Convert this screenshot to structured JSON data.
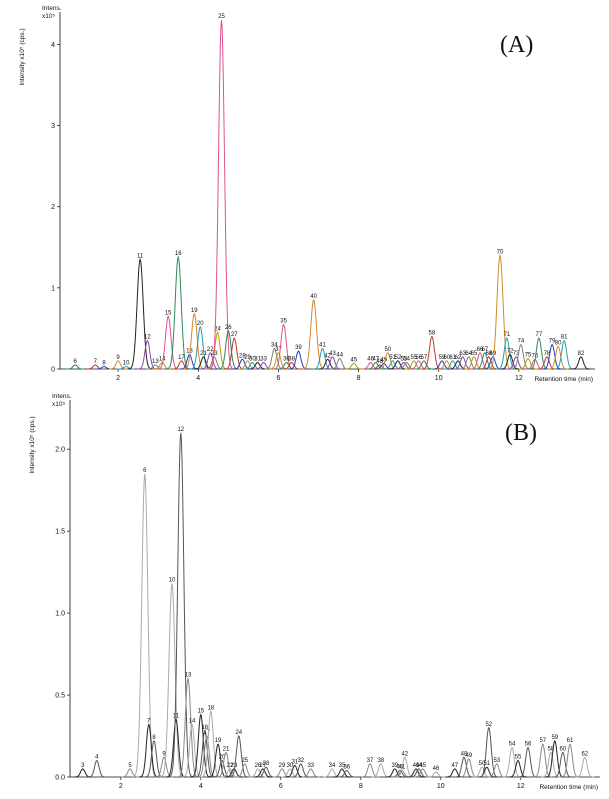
{
  "chart_data": [
    {
      "type": "chromatogram",
      "panel_label": "(A)",
      "y_unit_label": "Intens.",
      "y_scale_label": "x10⁵",
      "ylabel": "Intensity x10⁵ (cps.)",
      "xlabel": "Retention time (min)",
      "xlim": [
        0.55,
        13.9
      ],
      "ylim": [
        0,
        4.4
      ],
      "xticks": [
        2,
        4,
        6,
        8,
        10,
        12
      ],
      "yticks": [
        0,
        1,
        2,
        3,
        4
      ],
      "colors": [
        "#2e8b57",
        "#c0392b",
        "#1f3fbf",
        "#d4882a",
        "#20a0b0",
        "#222222",
        "#8e44ad",
        "#7f7f7f",
        "#b5a000",
        "#e05090"
      ],
      "labels": [
        "6",
        "7",
        "8",
        "9",
        "10",
        "11",
        "12",
        "13",
        "14",
        "15",
        "16",
        "17",
        "18",
        "19",
        "20",
        "21",
        "22",
        "23",
        "24",
        "25",
        "26",
        "27",
        "28",
        "29",
        "30",
        "31",
        "33",
        "34",
        "37",
        "35",
        "36",
        "38",
        "39",
        "40",
        "41",
        "42",
        "43",
        "44",
        "45",
        "46",
        "47",
        "48",
        "49",
        "50",
        "51",
        "52",
        "53",
        "54",
        "55",
        "56",
        "57",
        "58",
        "59",
        "60",
        "61",
        "62",
        "63",
        "64",
        "65",
        "66",
        "67",
        "68",
        "69",
        "70",
        "71",
        "72",
        "73",
        "74",
        "75",
        "76",
        "77",
        "78",
        "79",
        "80",
        "81",
        "82"
      ],
      "x": [
        0.93,
        1.43,
        1.65,
        2.0,
        2.2,
        2.55,
        2.73,
        2.93,
        3.1,
        3.25,
        3.5,
        3.58,
        3.78,
        3.9,
        4.05,
        4.13,
        4.3,
        4.4,
        4.48,
        4.58,
        4.75,
        4.9,
        5.1,
        5.23,
        5.35,
        5.48,
        5.63,
        5.9,
        6.0,
        6.13,
        6.2,
        6.33,
        6.5,
        6.88,
        7.1,
        7.23,
        7.35,
        7.53,
        7.88,
        8.3,
        8.43,
        8.53,
        8.63,
        8.73,
        8.85,
        8.98,
        9.13,
        9.2,
        9.38,
        9.5,
        9.63,
        9.83,
        10.08,
        10.2,
        10.35,
        10.48,
        10.6,
        10.75,
        10.88,
        11.03,
        11.15,
        11.25,
        11.35,
        11.53,
        11.7,
        11.78,
        11.93,
        12.05,
        12.23,
        12.4,
        12.5,
        12.7,
        12.83,
        12.98,
        13.13,
        13.55
      ],
      "values": [
        0.05,
        0.05,
        0.03,
        0.1,
        0.03,
        1.35,
        0.35,
        0.05,
        0.08,
        0.65,
        1.38,
        0.1,
        0.18,
        0.68,
        0.52,
        0.15,
        0.2,
        0.15,
        0.45,
        4.3,
        0.47,
        0.38,
        0.12,
        0.1,
        0.08,
        0.08,
        0.08,
        0.25,
        0.2,
        0.55,
        0.08,
        0.08,
        0.22,
        0.85,
        0.25,
        0.12,
        0.15,
        0.13,
        0.07,
        0.08,
        0.08,
        0.05,
        0.07,
        0.2,
        0.1,
        0.1,
        0.08,
        0.08,
        0.1,
        0.1,
        0.1,
        0.4,
        0.1,
        0.1,
        0.1,
        0.1,
        0.15,
        0.15,
        0.15,
        0.2,
        0.2,
        0.15,
        0.15,
        1.4,
        0.38,
        0.18,
        0.15,
        0.3,
        0.13,
        0.12,
        0.38,
        0.15,
        0.3,
        0.28,
        0.35,
        0.15
      ]
    },
    {
      "type": "chromatogram",
      "panel_label": "(B)",
      "y_unit_label": "Intens.",
      "y_scale_label": "x10⁵",
      "ylabel": "Intensity x10⁵ (cps.)",
      "xlabel": "Retention time (min)",
      "xlim": [
        0.73,
        13.98
      ],
      "ylim": [
        0,
        2.3
      ],
      "xticks": [
        2,
        4,
        6,
        8,
        10,
        12
      ],
      "yticks": [
        {
          "value": 0,
          "label": "0.0"
        },
        0.5,
        {
          "value": 1,
          "label": "1.0"
        },
        1.5,
        {
          "value": 2,
          "label": "2.0"
        }
      ],
      "colors": [
        "#222222",
        "#555555",
        "#888888",
        "#aaaaaa"
      ],
      "labels": [
        "3",
        "4",
        "5",
        "6",
        "7",
        "8",
        "9",
        "10",
        "11",
        "12",
        "13",
        "14",
        "15",
        "16",
        "17",
        "18",
        "19",
        "20",
        "21",
        "22",
        "23",
        "24",
        "25",
        "26",
        "27",
        "28",
        "29",
        "30",
        "31",
        "32",
        "33",
        "34",
        "35",
        "36",
        "37",
        "38",
        "39",
        "40",
        "41",
        "42",
        "43",
        "44",
        "45",
        "46",
        "47",
        "48",
        "49",
        "50",
        "51",
        "52",
        "53",
        "54",
        "55",
        "56",
        "57",
        "58",
        "59",
        "60",
        "61",
        "62"
      ],
      "x": [
        1.05,
        1.4,
        2.23,
        2.6,
        2.7,
        2.83,
        3.08,
        3.28,
        3.38,
        3.5,
        3.68,
        3.78,
        4.0,
        4.1,
        4.15,
        4.25,
        4.43,
        4.53,
        4.63,
        4.73,
        4.83,
        4.95,
        5.1,
        5.43,
        5.55,
        5.63,
        6.03,
        6.23,
        6.35,
        6.5,
        6.75,
        7.28,
        7.53,
        7.65,
        8.23,
        8.5,
        8.85,
        8.98,
        9.03,
        9.1,
        9.38,
        9.45,
        9.55,
        9.88,
        10.35,
        10.58,
        10.7,
        11.03,
        11.15,
        11.2,
        11.4,
        11.78,
        11.93,
        12.18,
        12.55,
        12.75,
        12.85,
        13.05,
        13.23,
        13.6
      ],
      "values": [
        0.05,
        0.1,
        0.05,
        1.85,
        0.32,
        0.22,
        0.12,
        1.18,
        0.35,
        2.1,
        0.6,
        0.32,
        0.38,
        0.28,
        0.25,
        0.4,
        0.2,
        0.1,
        0.15,
        0.05,
        0.05,
        0.25,
        0.08,
        0.05,
        0.05,
        0.06,
        0.05,
        0.05,
        0.07,
        0.08,
        0.05,
        0.05,
        0.05,
        0.04,
        0.08,
        0.08,
        0.05,
        0.04,
        0.04,
        0.12,
        0.05,
        0.05,
        0.05,
        0.03,
        0.05,
        0.12,
        0.11,
        0.06,
        0.06,
        0.3,
        0.08,
        0.18,
        0.1,
        0.18,
        0.2,
        0.15,
        0.22,
        0.15,
        0.2,
        0.12
      ]
    }
  ]
}
